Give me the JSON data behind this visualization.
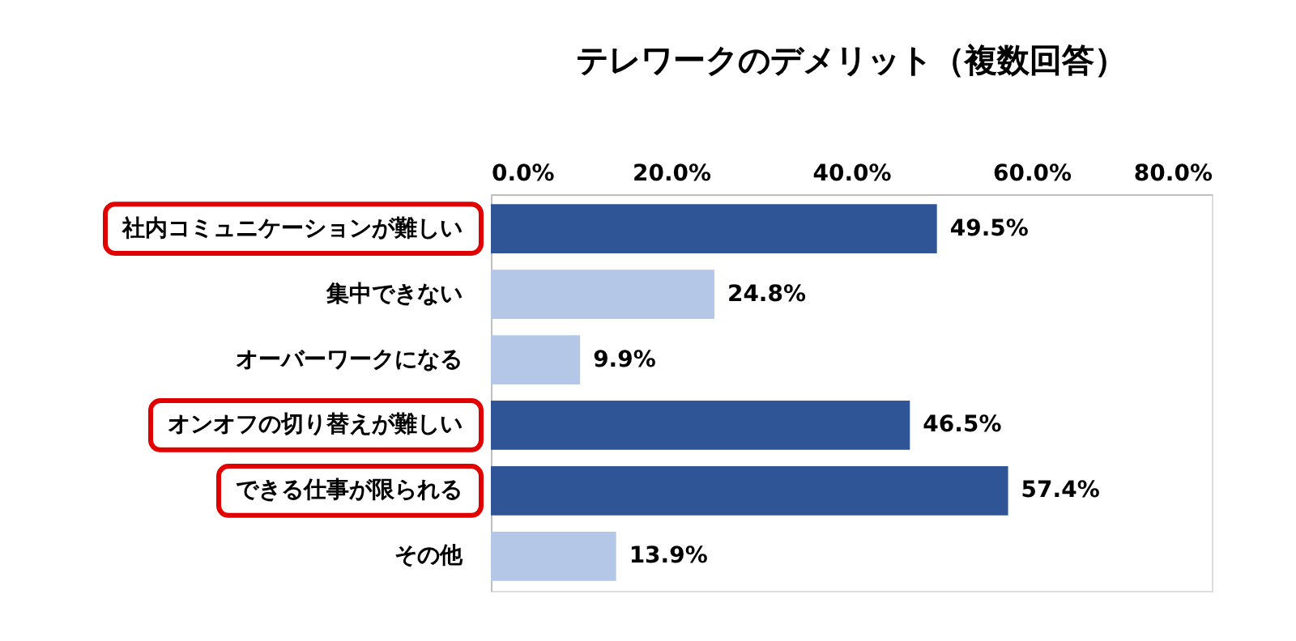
{
  "chart_data": {
    "type": "bar",
    "orientation": "horizontal",
    "title": "テレワークのデメリット（複数回答）",
    "categories": [
      "社内コミュニケーションが難しい",
      "集中できない",
      "オーバーワークになる",
      "オンオフの切り替えが難しい",
      "できる仕事が限られる",
      "その他"
    ],
    "values": [
      49.5,
      24.8,
      9.9,
      46.5,
      57.4,
      13.9
    ],
    "colors": [
      "#2f5597",
      "#b4c7e7",
      "#b4c7e7",
      "#2f5597",
      "#2f5597",
      "#b4c7e7"
    ],
    "value_labels": [
      "49.5%",
      "24.8%",
      "9.9%",
      "46.5%",
      "57.4%",
      "13.9%"
    ],
    "xlim": [
      0,
      80
    ],
    "xticks": [
      {
        "value": 0,
        "label": "0.0%"
      },
      {
        "value": 20,
        "label": "20.0%"
      },
      {
        "value": 40,
        "label": "40.0%"
      },
      {
        "value": 60,
        "label": "60.0%"
      },
      {
        "value": 80,
        "label": "80.0%"
      }
    ],
    "grid": false
  }
}
